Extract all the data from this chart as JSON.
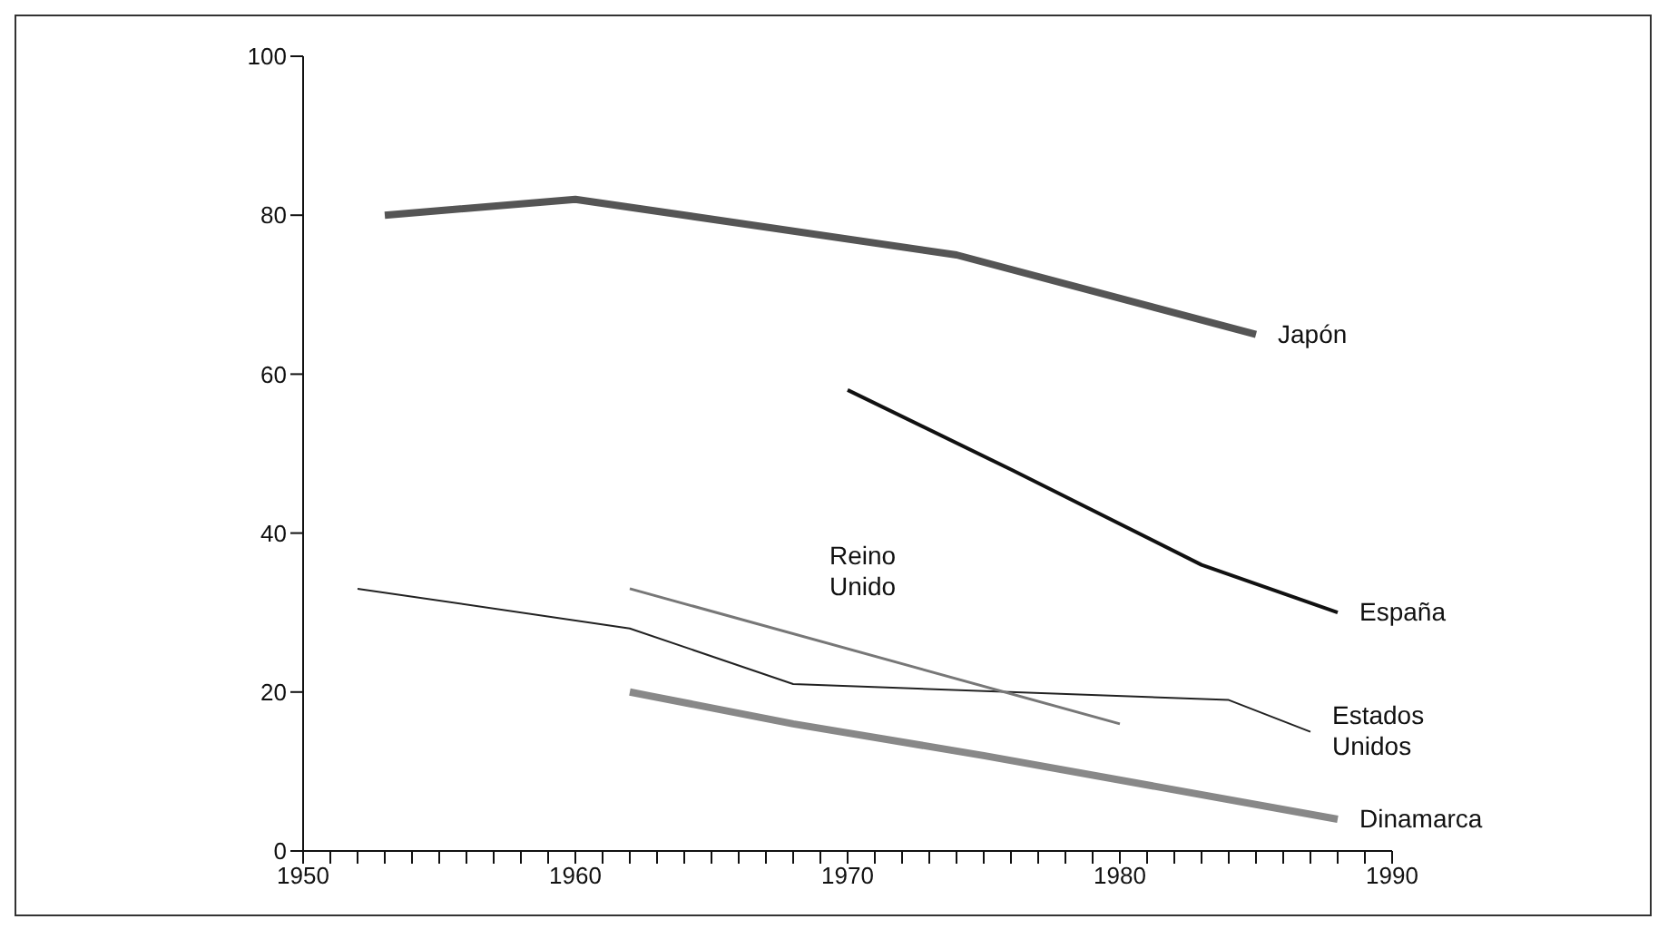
{
  "chart_data": {
    "type": "line",
    "xlim": [
      1950,
      1990
    ],
    "ylim": [
      0,
      100
    ],
    "yticks": [
      0,
      20,
      40,
      60,
      80,
      100
    ],
    "xticks": [
      1950,
      {
        "value": 1951,
        "label": null
      },
      {
        "value": 1952,
        "label": null
      },
      {
        "value": 1953,
        "label": null
      },
      {
        "value": 1954,
        "label": null
      },
      {
        "value": 1955,
        "label": null
      },
      {
        "value": 1956,
        "label": null
      },
      {
        "value": 1957,
        "label": null
      },
      {
        "value": 1958,
        "label": null
      },
      {
        "value": 1959,
        "label": null
      },
      1960,
      {
        "value": 1961,
        "label": null
      },
      {
        "value": 1962,
        "label": null
      },
      {
        "value": 1963,
        "label": null
      },
      {
        "value": 1964,
        "label": null
      },
      {
        "value": 1965,
        "label": null
      },
      {
        "value": 1966,
        "label": null
      },
      {
        "value": 1967,
        "label": null
      },
      {
        "value": 1968,
        "label": null
      },
      {
        "value": 1969,
        "label": null
      },
      1970,
      {
        "value": 1971,
        "label": null
      },
      {
        "value": 1972,
        "label": null
      },
      {
        "value": 1973,
        "label": null
      },
      {
        "value": 1974,
        "label": null
      },
      {
        "value": 1975,
        "label": null
      },
      {
        "value": 1976,
        "label": null
      },
      {
        "value": 1977,
        "label": null
      },
      {
        "value": 1978,
        "label": null
      },
      {
        "value": 1979,
        "label": null
      },
      1980,
      {
        "value": 1981,
        "label": null
      },
      {
        "value": 1982,
        "label": null
      },
      {
        "value": 1983,
        "label": null
      },
      {
        "value": 1984,
        "label": null
      },
      {
        "value": 1985,
        "label": null
      },
      {
        "value": 1986,
        "label": null
      },
      {
        "value": 1987,
        "label": null
      },
      {
        "value": 1988,
        "label": null
      },
      {
        "value": 1989,
        "label": null
      },
      1990
    ],
    "grid": false,
    "legend": false,
    "marker": "none",
    "line_style": "solid",
    "series": [
      {
        "name": "Japón",
        "color": "#555555",
        "x": [
          1953,
          1960,
          1974,
          1985
        ],
        "values": [
          80,
          82,
          75,
          65
        ]
      },
      {
        "name": "España",
        "color": "#111111",
        "x": [
          1970,
          1976,
          1983,
          1988
        ],
        "values": [
          58,
          48,
          36,
          30
        ]
      },
      {
        "name": "Estados Unidos",
        "color": "#222222",
        "x": [
          1952,
          1962,
          1968,
          1984,
          1987
        ],
        "values": [
          33,
          28,
          21,
          19,
          15
        ]
      },
      {
        "name": "Reino Unido",
        "color": "#777777",
        "x": [
          1962,
          1980
        ],
        "values": [
          33,
          16
        ]
      },
      {
        "name": "Dinamarca",
        "color": "#888888",
        "x": [
          1962,
          1968,
          1975,
          1988
        ],
        "values": [
          20,
          16,
          12,
          4
        ]
      }
    ]
  }
}
